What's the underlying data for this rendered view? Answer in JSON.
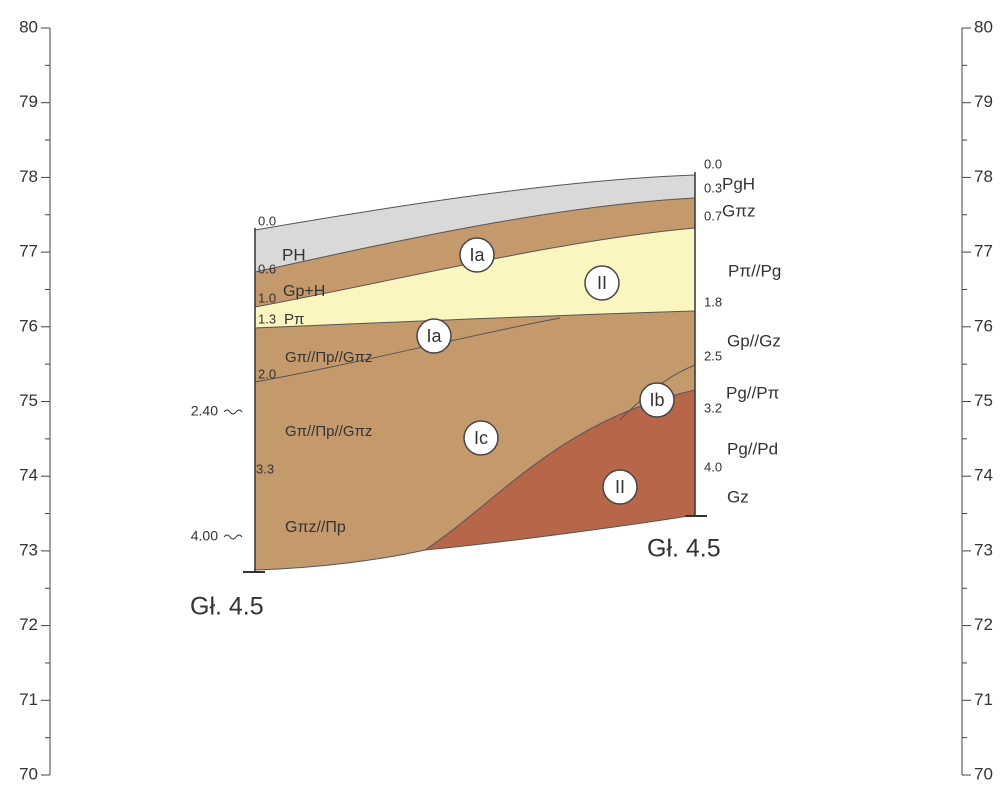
{
  "left_scale": [
    80,
    79,
    78,
    77,
    76,
    75,
    74,
    73,
    72,
    71,
    70
  ],
  "right_scale": [
    80,
    79,
    78,
    77,
    76,
    75,
    74,
    73,
    72,
    71,
    70
  ],
  "left_borehole": {
    "depths": [
      "0.0",
      "0.6",
      "1.0",
      "1.3",
      "2.0",
      "3.3"
    ],
    "soils": [
      "PH",
      "Gp+H",
      "Pπ",
      "Gπ//Πp//Gπz",
      "Gπ//Πp//Gπz",
      "Gπz//Πp"
    ],
    "water_levels": [
      "2.40",
      "4.00"
    ],
    "bottom": "Gł. 4.5"
  },
  "right_borehole": {
    "depths": [
      "0.0",
      "0.3",
      "0.7",
      "1.8",
      "2.5",
      "3.2",
      "4.0"
    ],
    "soils": [
      "PgH",
      "Gπz",
      "Pπ//Pg",
      "Gp//Gz",
      "Pg//Pπ",
      "Pg//Pd",
      "Gz"
    ],
    "bottom": "Gł. 4.5"
  },
  "zones": [
    {
      "label": "Ia"
    },
    {
      "label": "II"
    },
    {
      "label": "Ia"
    },
    {
      "label": "Ic"
    },
    {
      "label": "Ib"
    },
    {
      "label": "II"
    }
  ]
}
